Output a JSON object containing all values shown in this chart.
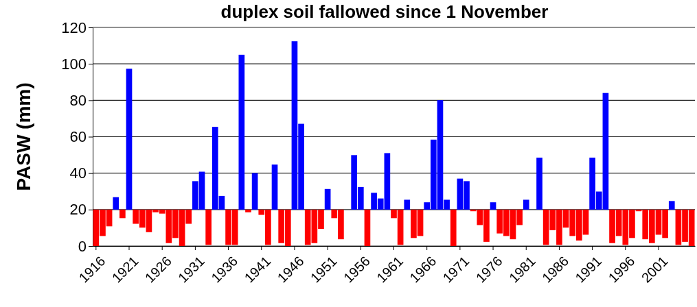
{
  "chart_data": {
    "type": "bar",
    "title": "duplex soil fallowed since 1 November",
    "ylabel": "PASW (mm)",
    "categories": [
      "1916",
      null,
      null,
      null,
      null,
      "1921",
      null,
      null,
      null,
      null,
      "1926",
      null,
      null,
      null,
      null,
      "1931",
      null,
      null,
      null,
      null,
      "1936",
      null,
      null,
      null,
      null,
      "1941",
      null,
      null,
      null,
      null,
      "1946",
      null,
      null,
      null,
      null,
      "1951",
      null,
      null,
      null,
      null,
      "1956",
      null,
      null,
      null,
      null,
      "1961",
      null,
      null,
      null,
      null,
      "1966",
      null,
      null,
      null,
      null,
      "1971",
      null,
      null,
      null,
      null,
      "1976",
      null,
      null,
      null,
      null,
      "1981",
      null,
      null,
      null,
      null,
      "1986",
      null,
      null,
      null,
      null,
      "1991",
      null,
      null,
      null,
      null,
      "1996",
      null,
      null,
      null,
      null,
      "2001",
      null,
      null,
      null,
      null,
      null
    ],
    "base": [
      20,
      20,
      20,
      20,
      20,
      20,
      20,
      20,
      20,
      20,
      20,
      20,
      20,
      20,
      20,
      20,
      20,
      20,
      20,
      20,
      20,
      20,
      20,
      20,
      20,
      20,
      20,
      20,
      20,
      20,
      20,
      20,
      20,
      20,
      20,
      20,
      20,
      20,
      null,
      20,
      20,
      20,
      20,
      20,
      20,
      20,
      20,
      20,
      20,
      20,
      20,
      20,
      20,
      20,
      20,
      20,
      20,
      20,
      20,
      20,
      20,
      20,
      20,
      20,
      20,
      20,
      null,
      20,
      20,
      20,
      20,
      20,
      20,
      20,
      20,
      20,
      20,
      20,
      20,
      20,
      20,
      20,
      20,
      20,
      20,
      20,
      20,
      20,
      20,
      20,
      20
    ],
    "values": [
      -20,
      -14.5,
      -9.2,
      6.8,
      -4.7,
      77.3,
      -7.8,
      -9.9,
      -12.4,
      -1.5,
      -2.2,
      -18.4,
      -15.6,
      -20,
      -7.8,
      15.6,
      20.8,
      -19.4,
      45.4,
      7.5,
      -19.4,
      -19.4,
      85,
      -1.5,
      20,
      -2.9,
      -19.4,
      24.7,
      -18.4,
      -20,
      92.4,
      47.1,
      -19.4,
      -18.4,
      -10.6,
      11.3,
      -4.7,
      -16.3,
      null,
      29.9,
      12.4,
      -20,
      9.2,
      6.1,
      31,
      -4.7,
      -19.4,
      5.4,
      -15.6,
      -14.5,
      4,
      38.4,
      60.1,
      5.4,
      -20,
      17,
      15.6,
      -0.9,
      -8.5,
      -17.7,
      4,
      -13.1,
      -14.5,
      -16.3,
      -8.5,
      5.4,
      null,
      28.5,
      -19.4,
      -11.3,
      -19.4,
      -9.9,
      -14.5,
      -17,
      -13.8,
      28.5,
      9.9,
      64,
      -18.4,
      -14.5,
      -19.4,
      -15.6,
      -0.9,
      -16.3,
      -18.4,
      -13.8,
      -15.6,
      4.7,
      -19.4,
      -17.7,
      -20
    ],
    "colors": [
      "#ff0000",
      "#ff0000",
      "#ff0000",
      "#0000ff",
      "#ff0000",
      "#0000ff",
      "#ff0000",
      "#ff0000",
      "#ff0000",
      "#ff0000",
      "#ff0000",
      "#ff0000",
      "#ff0000",
      "#ff0000",
      "#ff0000",
      "#0000ff",
      "#0000ff",
      "#ff0000",
      "#0000ff",
      "#0000ff",
      "#ff0000",
      "#ff0000",
      "#0000ff",
      "#ff0000",
      "#0000ff",
      "#ff0000",
      "#ff0000",
      "#0000ff",
      "#ff0000",
      "#ff0000",
      "#0000ff",
      "#0000ff",
      "#ff0000",
      "#ff0000",
      "#ff0000",
      "#0000ff",
      "#ff0000",
      "#ff0000",
      null,
      "#0000ff",
      "#0000ff",
      "#ff0000",
      "#0000ff",
      "#0000ff",
      "#0000ff",
      "#ff0000",
      "#ff0000",
      "#0000ff",
      "#ff0000",
      "#ff0000",
      "#0000ff",
      "#0000ff",
      "#0000ff",
      "#0000ff",
      "#ff0000",
      "#0000ff",
      "#0000ff",
      "#ff0000",
      "#ff0000",
      "#ff0000",
      "#0000ff",
      "#ff0000",
      "#ff0000",
      "#ff0000",
      "#ff0000",
      "#0000ff",
      null,
      "#0000ff",
      "#ff0000",
      "#ff0000",
      "#ff0000",
      "#ff0000",
      "#ff0000",
      "#ff0000",
      "#ff0000",
      "#0000ff",
      "#0000ff",
      "#0000ff",
      "#ff0000",
      "#ff0000",
      "#ff0000",
      "#ff0000",
      "#ff0000",
      "#ff0000",
      "#ff0000",
      "#ff0000",
      "#ff0000",
      "#0000ff",
      "#ff0000",
      "#ff0000",
      "#ff0000"
    ],
    "ylim": [
      0,
      120
    ],
    "yticks": [
      0,
      20,
      40,
      60,
      80,
      100,
      120
    ],
    "grid": "y"
  }
}
